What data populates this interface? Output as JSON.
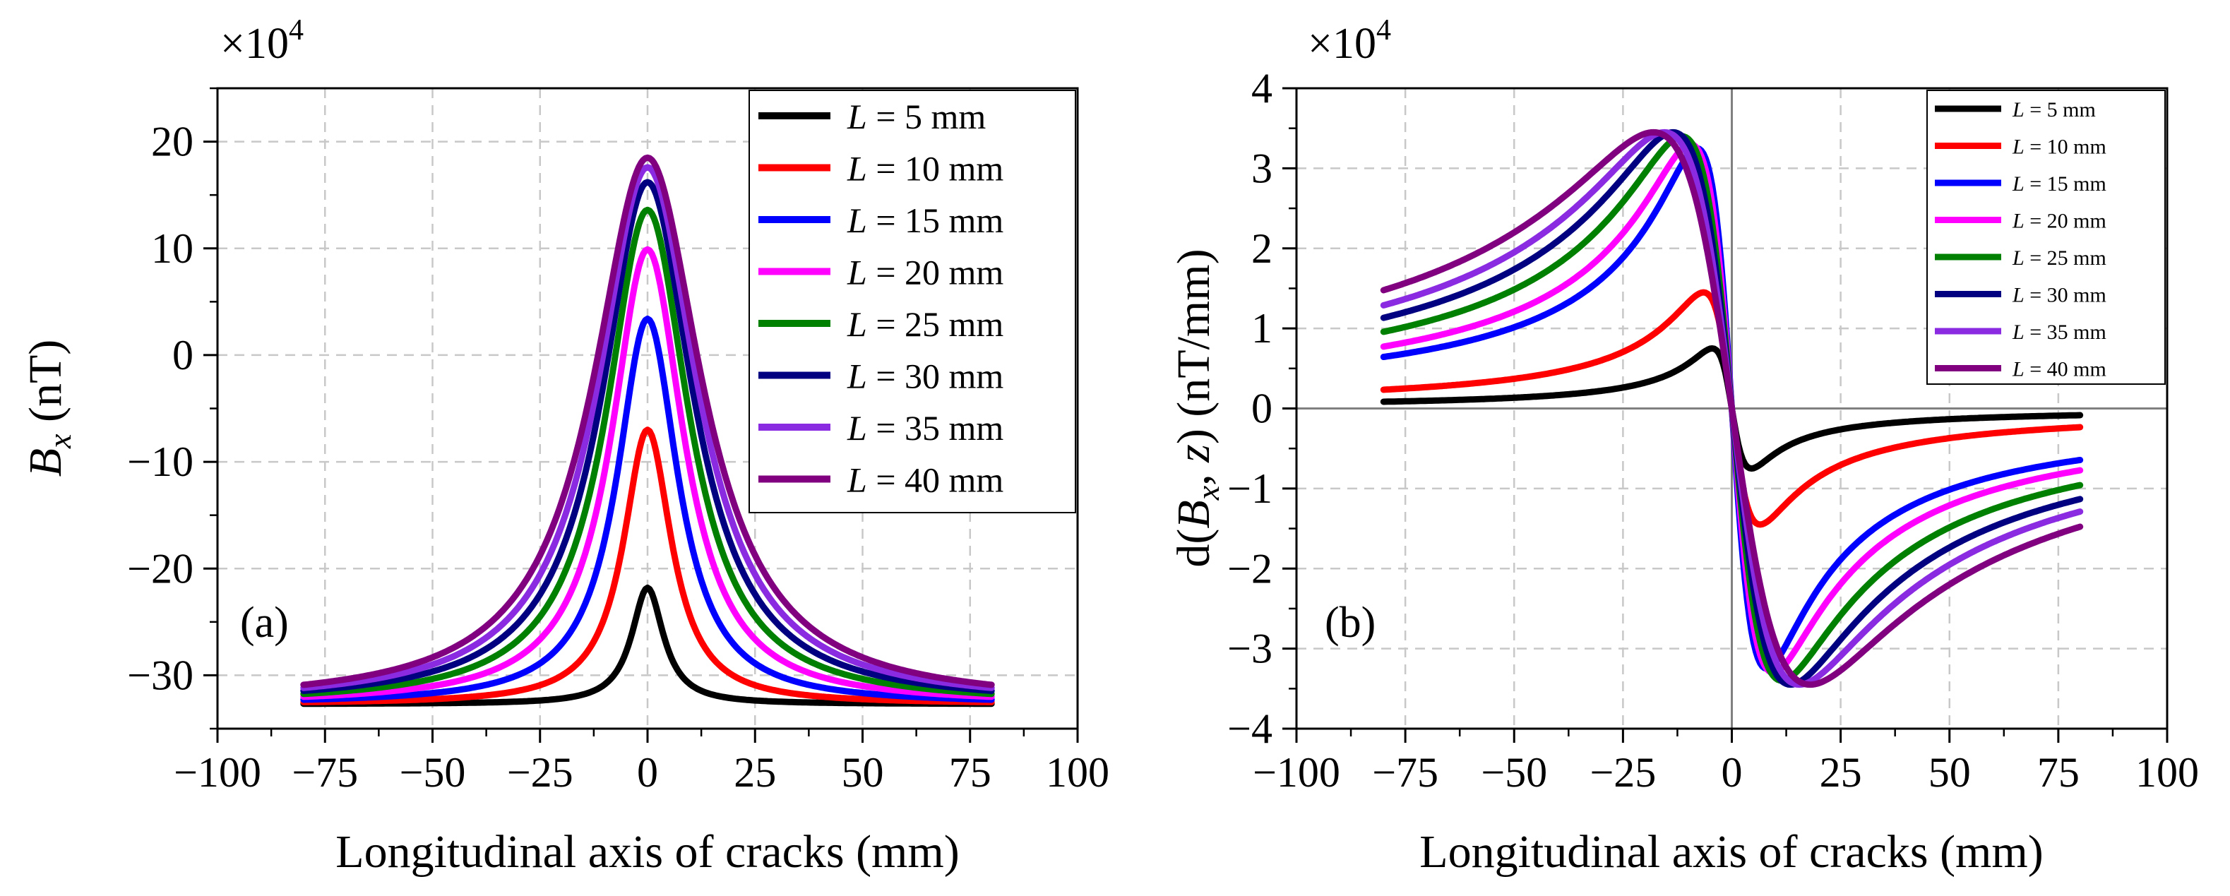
{
  "chart_data": [
    {
      "type": "line",
      "panel_label": "(a)",
      "multiplier_base": "×10",
      "multiplier_exp": "4",
      "ylabel_main": "B",
      "ylabel_sub": "x",
      "ylabel_units": " (nT)",
      "xlabel": "Longitudinal axis of cracks (mm)",
      "xlim": [
        -100,
        100
      ],
      "ylim": [
        -35,
        25
      ],
      "xticks": [
        -100,
        -75,
        -50,
        -25,
        0,
        25,
        50,
        75,
        100
      ],
      "xtick_labels": [
        "−100",
        "−75",
        "−50",
        "−25",
        "0",
        "25",
        "50",
        "75",
        "100"
      ],
      "yticks": [
        -30,
        -20,
        -10,
        0,
        10,
        20
      ],
      "ytick_labels": [
        "−30",
        "−20",
        "−10",
        "0",
        "10",
        "20"
      ],
      "grid": true,
      "legend_position": "top-right",
      "x_domain": [
        -80,
        80
      ],
      "baseline": -32.7,
      "series": [
        {
          "name": "L = 5 mm",
          "name_var": "L",
          "name_rest": " = 5 mm",
          "color": "#000000",
          "peak": -21.8,
          "width": 4.5
        },
        {
          "name": "L = 10 mm",
          "name_var": "L",
          "name_rest": " = 10 mm",
          "color": "#ff0000",
          "peak": -7.0,
          "width": 6.8
        },
        {
          "name": "L = 15 mm",
          "name_var": "L",
          "name_rest": " = 15 mm",
          "color": "#0000ff",
          "peak": 3.4,
          "width": 8.6
        },
        {
          "name": "L = 20 mm",
          "name_var": "L",
          "name_rest": " = 20 mm",
          "color": "#ff00ff",
          "peak": 9.9,
          "width": 10.2
        },
        {
          "name": "L = 25 mm",
          "name_var": "L",
          "name_rest": " = 25 mm",
          "color": "#008000",
          "peak": 13.6,
          "width": 11.6
        },
        {
          "name": "L = 30 mm",
          "name_var": "L",
          "name_rest": " = 30 mm",
          "color": "#000080",
          "peak": 16.2,
          "width": 12.9
        },
        {
          "name": "L = 35 mm",
          "name_var": "L",
          "name_rest": " = 35 mm",
          "color": "#8a2be2",
          "peak": 17.6,
          "width": 14.1
        },
        {
          "name": "L = 40 mm",
          "name_var": "L",
          "name_rest": " = 40 mm",
          "color": "#800080",
          "peak": 18.5,
          "width": 15.3
        }
      ]
    },
    {
      "type": "line",
      "panel_label": "(b)",
      "multiplier_base": "×10",
      "multiplier_exp": "4",
      "ylabel_pre": "d(",
      "ylabel_main": "B",
      "ylabel_sub": "x",
      "ylabel_mid": ", ",
      "ylabel_var": "z",
      "ylabel_units": ") (nT/mm)",
      "xlabel": "Longitudinal axis of cracks (mm)",
      "xlim": [
        -100,
        100
      ],
      "ylim": [
        -4,
        4
      ],
      "xticks": [
        -100,
        -75,
        -50,
        -25,
        0,
        25,
        50,
        75,
        100
      ],
      "xtick_labels": [
        "−100",
        "−75",
        "−50",
        "−25",
        "0",
        "25",
        "50",
        "75",
        "100"
      ],
      "yticks": [
        -4,
        -3,
        -2,
        -1,
        0,
        1,
        2,
        3,
        4
      ],
      "ytick_labels": [
        "−4",
        "−3",
        "−2",
        "−1",
        "0",
        "1",
        "2",
        "3",
        "4"
      ],
      "grid": true,
      "legend_position": "top-right",
      "x_domain": [
        -80,
        80
      ],
      "series": [
        {
          "name": "L = 5 mm",
          "name_var": "L",
          "name_rest": " = 5 mm",
          "color": "#000000",
          "peak_x": 4.5,
          "amplitude": 0.75
        },
        {
          "name": "L = 10 mm",
          "name_var": "L",
          "name_rest": " = 10 mm",
          "color": "#ff0000",
          "peak_x": 6.5,
          "amplitude": 1.45
        },
        {
          "name": "L = 15 mm",
          "name_var": "L",
          "name_rest": " = 15 mm",
          "color": "#0000ff",
          "peak_x": 8.0,
          "amplitude": 3.25
        },
        {
          "name": "L = 20 mm",
          "name_var": "L",
          "name_rest": " = 20 mm",
          "color": "#ff00ff",
          "peak_x": 9.5,
          "amplitude": 3.3
        },
        {
          "name": "L = 25 mm",
          "name_var": "L",
          "name_rest": " = 25 mm",
          "color": "#008000",
          "peak_x": 11.5,
          "amplitude": 3.4
        },
        {
          "name": "L = 30 mm",
          "name_var": "L",
          "name_rest": " = 30 mm",
          "color": "#000080",
          "peak_x": 13.5,
          "amplitude": 3.45
        },
        {
          "name": "L = 35 mm",
          "name_var": "L",
          "name_rest": " = 35 mm",
          "color": "#8a2be2",
          "peak_x": 15.5,
          "amplitude": 3.45
        },
        {
          "name": "L = 40 mm",
          "name_var": "L",
          "name_rest": " = 40 mm",
          "color": "#800080",
          "peak_x": 18.0,
          "amplitude": 3.45
        }
      ]
    }
  ]
}
